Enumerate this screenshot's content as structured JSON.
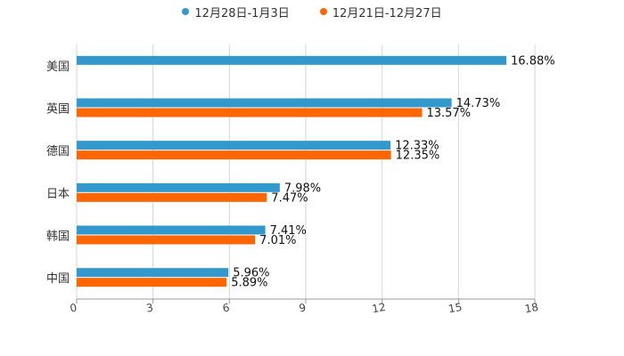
{
  "chart_data": {
    "type": "bar",
    "orientation": "horizontal",
    "title": "",
    "xlabel": "",
    "ylabel": "",
    "xlim": [
      0,
      18
    ],
    "x_ticks": [
      "0",
      "3",
      "6",
      "9",
      "12",
      "15",
      "18"
    ],
    "categories": [
      "美国",
      "英国",
      "德国",
      "日本",
      "韩国",
      "中国"
    ],
    "series": [
      {
        "name": "12月28日-1月3日",
        "color": "#3399cc",
        "values": [
          16.88,
          14.73,
          12.33,
          7.98,
          7.41,
          5.96
        ],
        "labels": [
          "16.88%",
          "14.73%",
          "12.33%",
          "7.98%",
          "7.41%",
          "5.96%"
        ]
      },
      {
        "name": "12月21日-12月27日",
        "color": "#ff6600",
        "values": [
          null,
          13.57,
          12.35,
          7.47,
          7.01,
          5.89
        ],
        "labels": [
          "",
          "13.57%",
          "12.35%",
          "7.47%",
          "7.01%",
          "5.89%"
        ]
      }
    ],
    "legend_position": "top-center",
    "grid": true
  }
}
